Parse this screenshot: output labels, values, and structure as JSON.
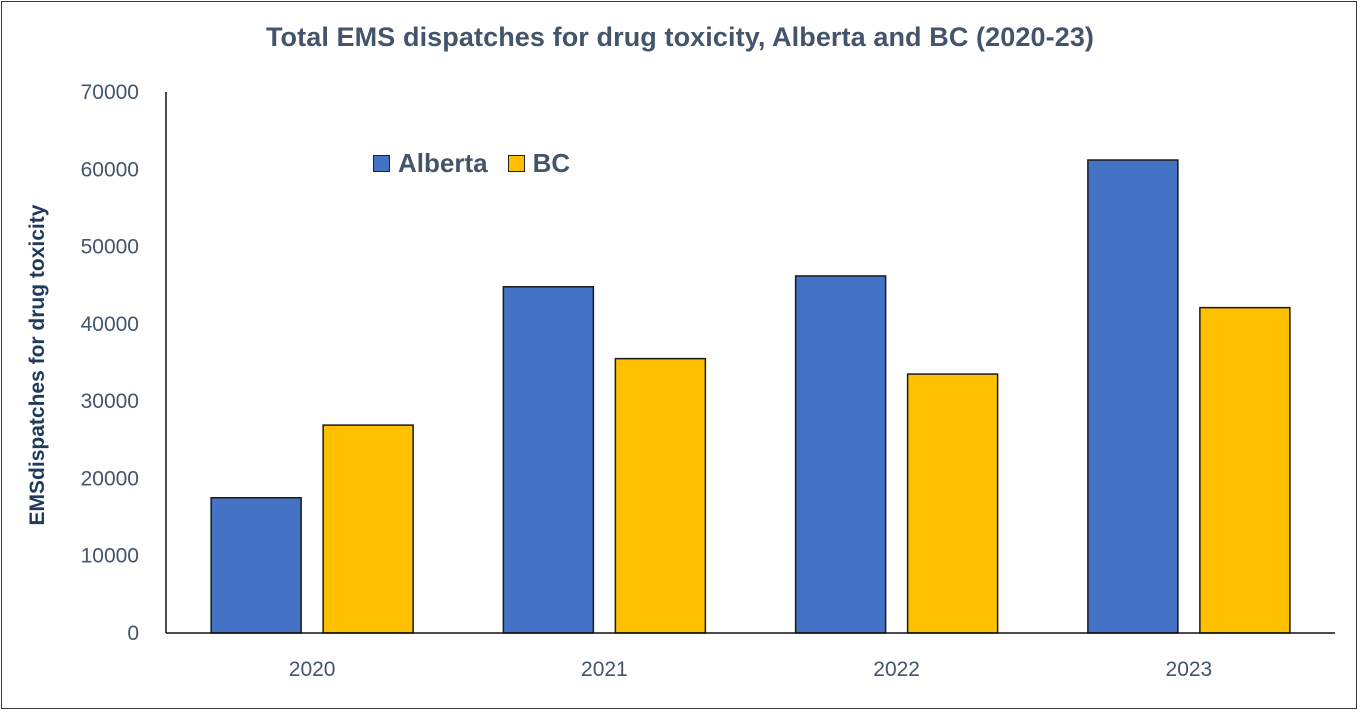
{
  "chart_data": {
    "type": "bar",
    "title": "Total EMS dispatches for drug toxicity, Alberta and BC (2020-23)",
    "xlabel": "",
    "ylabel": "EMSdispatches for drug toxicity",
    "categories": [
      "2020",
      "2021",
      "2022",
      "2023"
    ],
    "series": [
      {
        "name": "Alberta",
        "color": "#4472c4",
        "values": [
          17500,
          44800,
          46200,
          61200
        ]
      },
      {
        "name": "BC",
        "color": "#ffc000",
        "values": [
          26900,
          35500,
          33500,
          42100
        ]
      }
    ],
    "ylim": [
      0,
      70000
    ],
    "yticks": [
      "0",
      "10000",
      "20000",
      "30000",
      "40000",
      "50000",
      "60000",
      "70000"
    ],
    "grid": false,
    "legend_position": "top-left"
  }
}
